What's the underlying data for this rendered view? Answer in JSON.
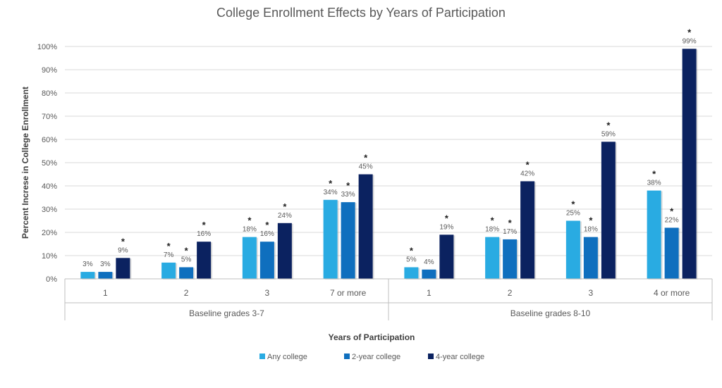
{
  "chart_data": {
    "type": "bar",
    "title": "College Enrollment Effects by Years of Participation",
    "xlabel": "Years of Participation",
    "ylabel": "Percent Increse in College Enrollment",
    "ylim": [
      0,
      100
    ],
    "yticks": [
      "0%",
      "10%",
      "20%",
      "30%",
      "40%",
      "50%",
      "60%",
      "70%",
      "80%",
      "90%",
      "100%"
    ],
    "grid": true,
    "legend_position": "bottom",
    "groups": [
      {
        "label": "Baseline grades 3-7",
        "categories": [
          "1",
          "2",
          "3",
          "7 or more"
        ]
      },
      {
        "label": "Baseline grades 8-10",
        "categories": [
          "1",
          "2",
          "3",
          "4 or more"
        ]
      }
    ],
    "categories": [
      "1",
      "2",
      "3",
      "7 or more",
      "1",
      "2",
      "3",
      "4 or more"
    ],
    "series": [
      {
        "name": "Any college",
        "color": "#29ABE2",
        "values": [
          3,
          7,
          18,
          34,
          5,
          18,
          25,
          38
        ],
        "significant": [
          false,
          true,
          true,
          true,
          true,
          true,
          true,
          true
        ]
      },
      {
        "name": "2-year college",
        "color": "#0F6FBE",
        "values": [
          3,
          5,
          16,
          33,
          4,
          17,
          18,
          22
        ],
        "significant": [
          false,
          true,
          true,
          true,
          false,
          true,
          true,
          true
        ]
      },
      {
        "name": "4-year college",
        "color": "#0B2260",
        "values": [
          9,
          16,
          24,
          45,
          19,
          42,
          59,
          99
        ],
        "significant": [
          true,
          true,
          true,
          true,
          true,
          true,
          true,
          true
        ]
      }
    ],
    "significance_marker": "*"
  }
}
